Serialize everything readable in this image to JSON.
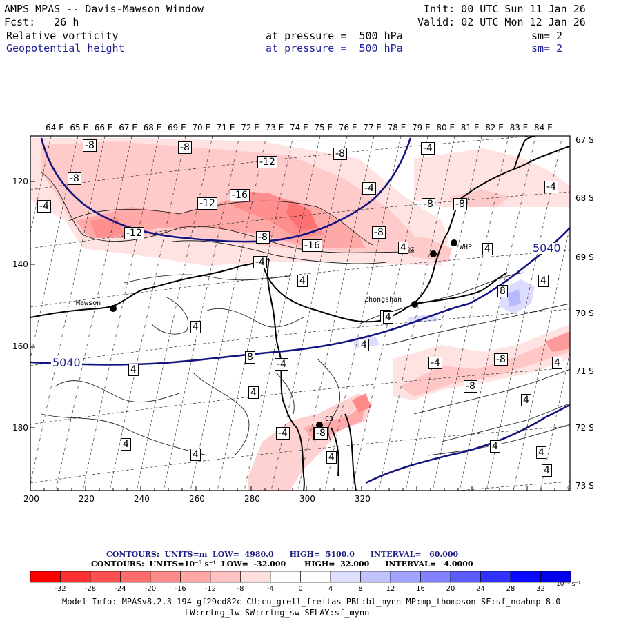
{
  "header": {
    "title": "AMPS MPAS -- Davis-Mawson Window",
    "forecast": "Fcst:   26 h",
    "init": "Init: 00 UTC Sun 11 Jan 26",
    "valid": "Valid: 02 UTC Mon 12 Jan 26",
    "field1": {
      "name": "Relative vorticity",
      "level": "at pressure =  500 hPa",
      "smooth": "sm= 2"
    },
    "field2": {
      "name": "Geopotential height",
      "level": "at pressure =  500 hPa",
      "smooth": "sm= 2"
    }
  },
  "map": {
    "top_labels": [
      "64 E",
      "65 E",
      "66 E",
      "67 E",
      "68 E",
      "69 E",
      "70 E",
      "71 E",
      "72 E",
      "73 E",
      "74 E",
      "75 E",
      "76 E",
      "77 E",
      "78 E",
      "79 E",
      "80 E",
      "81 E",
      "82 E",
      "83 E",
      "84 E"
    ],
    "right_labels": [
      "67 S",
      "68 S",
      "69 S",
      "70 S",
      "71 S",
      "72 S",
      "73 S"
    ],
    "left_ticks": [
      "120",
      "140",
      "160",
      "180"
    ],
    "bottom_ticks": [
      "200",
      "220",
      "240",
      "260",
      "280",
      "300",
      "320"
    ],
    "stations": [
      "Mawson",
      "Zhongshan",
      "Dbz",
      "WHP",
      "C3"
    ],
    "height_labels": [
      "5040",
      "5040"
    ],
    "vort_labels": [
      "-8",
      "-8",
      "-8",
      "-8",
      "-4",
      "-4",
      "-12",
      "-16",
      "-12",
      "-12",
      "-8",
      "-16",
      "-8",
      "-4",
      "-8",
      "-8",
      "-4",
      "-4",
      "4",
      "4",
      "4",
      "8",
      "4",
      "8",
      "4",
      "-4",
      "-8",
      "4",
      "4",
      "4",
      "-4",
      "-8",
      "4",
      "4",
      "4",
      "4",
      "4",
      "4",
      "4",
      "-4",
      "-8",
      "4",
      "4",
      "4",
      "-8"
    ]
  },
  "contours_info": {
    "line1": "CONTOURS:  UNITS=m  LOW=  4980.0      HIGH=  5100.0      INTERVAL=   60.000",
    "line2": "CONTOURS:  UNITS=10⁻⁵ s⁻¹  LOW=  -32.000       HIGH=  32.000      INTERVAL=   4.0000"
  },
  "colorbar": {
    "labels": [
      "-32",
      "-28",
      "-24",
      "-20",
      "-16",
      "-12",
      "-8",
      "-4",
      "0",
      "4",
      "8",
      "12",
      "16",
      "20",
      "24",
      "28",
      "32"
    ],
    "unit": "10⁻⁵ s⁻¹",
    "colors": [
      "#ff0000",
      "#ff3030",
      "#ff5050",
      "#ff6c6c",
      "#ff8a8a",
      "#ffa6a6",
      "#ffc2c2",
      "#ffdede",
      "#ffffff",
      "#ffffff",
      "#dedeff",
      "#c2c2ff",
      "#a2a2ff",
      "#8282ff",
      "#5a5aff",
      "#3232ff",
      "#0a0aff",
      "#0000ee"
    ]
  },
  "footer": {
    "line1": "Model Info: MPASv8.2.3-194-gf29cd82c CU:cu_grell_freitas PBL:bl_mynn MP:mp_thompson SF:sf_noahmp 8.0",
    "line2": "LW:rrtmg_lw SW:rrtmg_sw SFLAY:sf_mynn"
  }
}
